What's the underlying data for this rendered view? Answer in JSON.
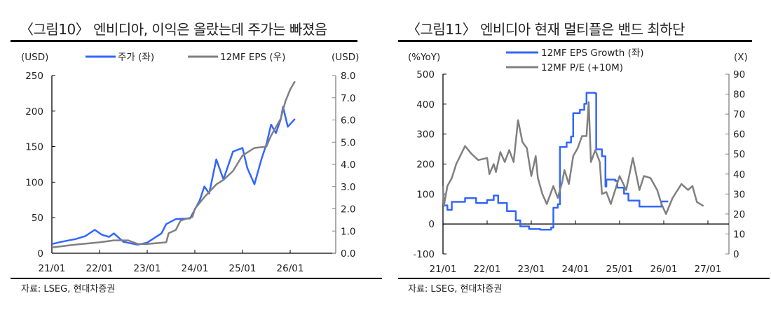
{
  "chart_data": [
    {
      "type": "line",
      "title": "〈그림10〉 엔비디아, 이익은 올랐는데 주가는 빠졌음",
      "source": "자료: LSEG, 현대차증권",
      "y_left_label": "(USD)",
      "y_right_label": "(USD)",
      "x_ticks": [
        "21/01",
        "22/01",
        "23/01",
        "24/01",
        "25/01",
        "26/01"
      ],
      "x_range": [
        21.0,
        27.0
      ],
      "ylim_left": [
        0,
        250
      ],
      "ylim_right": [
        0,
        8
      ],
      "y_left_ticks": [
        "0",
        "50",
        "100",
        "150",
        "200",
        "250"
      ],
      "y_right_ticks": [
        "0.0",
        "1.0",
        "2.0",
        "3.0",
        "4.0",
        "5.0",
        "6.0",
        "7.0",
        "8.0"
      ],
      "grid": false,
      "legend": "top",
      "series": [
        {
          "name": "주가 (좌)",
          "axis": "left",
          "color": "#3366ff",
          "x": [
            21.0,
            21.2,
            21.5,
            21.7,
            21.9,
            22.05,
            22.2,
            22.3,
            22.5,
            22.8,
            23.0,
            23.3,
            23.4,
            23.6,
            23.9,
            24.1,
            24.2,
            24.3,
            24.45,
            24.6,
            24.8,
            25.0,
            25.1,
            25.25,
            25.4,
            25.5,
            25.6,
            25.7,
            25.8,
            25.85,
            25.95,
            26.1
          ],
          "y": [
            13,
            16,
            20,
            24,
            33,
            26,
            23,
            28,
            16,
            12,
            15,
            28,
            41,
            48,
            49,
            74,
            94,
            84,
            132,
            104,
            143,
            148,
            120,
            97,
            133,
            153,
            181,
            169,
            188,
            206,
            178,
            189
          ]
        },
        {
          "name": "12MF EPS (우)",
          "axis": "right",
          "color": "#808080",
          "x": [
            21.0,
            21.5,
            22.0,
            22.3,
            22.6,
            22.8,
            23.0,
            23.4,
            23.45,
            23.6,
            23.7,
            23.95,
            24.0,
            24.2,
            24.45,
            24.6,
            24.8,
            25.0,
            25.25,
            25.5,
            25.6,
            25.8,
            25.9,
            26.0,
            26.1
          ],
          "y": [
            0.26,
            0.39,
            0.49,
            0.58,
            0.58,
            0.42,
            0.42,
            0.49,
            0.9,
            1.05,
            1.47,
            1.63,
            2.0,
            2.53,
            3.1,
            3.3,
            3.7,
            4.4,
            4.74,
            4.8,
            5.3,
            6.05,
            6.84,
            7.37,
            7.74
          ]
        }
      ]
    },
    {
      "type": "line",
      "title": "〈그림11〉 엔비디아 현재 멀티플은 밴드 최하단",
      "source": "자료: LSEG, 현대차증권",
      "y_left_label": "(%YoY)",
      "y_right_label": "(X)",
      "x_ticks": [
        "21/01",
        "22/01",
        "23/01",
        "24/01",
        "25/01",
        "26/01",
        "27/01"
      ],
      "x_range": [
        21.0,
        27.5
      ],
      "ylim_left": [
        -100,
        500
      ],
      "ylim_right": [
        0,
        90
      ],
      "y_left_ticks": [
        "-100",
        "0",
        "100",
        "200",
        "300",
        "400",
        "500"
      ],
      "y_right_ticks": [
        "0",
        "10",
        "20",
        "30",
        "40",
        "50",
        "60",
        "70",
        "80",
        "90"
      ],
      "grid": false,
      "legend": "top",
      "series": [
        {
          "name": "12MF EPS Growth (좌)",
          "axis": "left",
          "color": "#3366ff",
          "step": true,
          "x": [
            21.0,
            21.1,
            21.2,
            21.5,
            21.75,
            22.0,
            22.15,
            22.25,
            22.45,
            22.65,
            22.75,
            22.95,
            23.2,
            23.45,
            23.5,
            23.6,
            23.65,
            23.8,
            23.9,
            23.95,
            24.1,
            24.2,
            24.25,
            24.45,
            24.47,
            24.6,
            24.68,
            24.7,
            24.9,
            24.95,
            25.1,
            25.2,
            25.45,
            25.9,
            25.95,
            26.1
          ],
          "y": [
            62,
            47,
            74,
            86,
            70,
            80,
            95,
            70,
            43,
            12,
            -8,
            -17,
            -19,
            -12,
            54,
            66,
            257,
            272,
            292,
            370,
            381,
            401,
            438,
            436,
            249,
            226,
            125,
            148,
            144,
            121,
            101,
            78,
            58,
            58,
            75,
            75
          ]
        },
        {
          "name": "12MF P/E (+10M)",
          "axis": "right",
          "color": "#808080",
          "x": [
            21.0,
            21.02,
            21.1,
            21.2,
            21.3,
            21.5,
            21.65,
            21.8,
            22.0,
            22.05,
            22.15,
            22.2,
            22.3,
            22.4,
            22.5,
            22.6,
            22.7,
            22.8,
            22.9,
            23.0,
            23.1,
            23.15,
            23.25,
            23.35,
            23.5,
            23.6,
            23.7,
            23.75,
            23.85,
            23.95,
            24.05,
            24.15,
            24.25,
            24.3,
            24.35,
            24.45,
            24.55,
            24.6,
            24.7,
            24.8,
            24.9,
            25.0,
            25.15,
            25.3,
            25.45,
            25.55,
            25.7,
            25.85,
            25.95,
            26.05,
            26.2,
            26.4,
            26.55,
            26.65,
            26.75,
            26.9
          ],
          "y": [
            34,
            24,
            34,
            38,
            45,
            54,
            50,
            47,
            48,
            40,
            45,
            41,
            51,
            46,
            52,
            46,
            67,
            56,
            53,
            39,
            49,
            38,
            30,
            25,
            34,
            28,
            36,
            42,
            35,
            49,
            53,
            59,
            59,
            76,
            46,
            52,
            46,
            30,
            31,
            25,
            32,
            39,
            32,
            48,
            32,
            39,
            38,
            32,
            25,
            20,
            28,
            35,
            32,
            34,
            26,
            24
          ]
        }
      ]
    }
  ]
}
